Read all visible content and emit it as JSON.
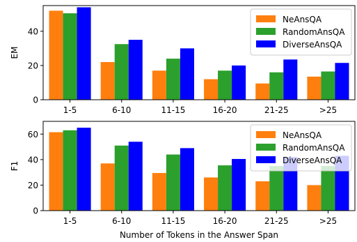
{
  "chart_data": [
    {
      "type": "bar",
      "ylabel": "EM",
      "xlabel": "",
      "ylim": [
        0,
        55
      ],
      "yticks": [
        "0",
        "20",
        "40"
      ],
      "categories": [
        "1-5",
        "6-10",
        "11-15",
        "16-20",
        "21-25",
        ">25"
      ],
      "legend_position": "top-right",
      "series": [
        {
          "name": "NeAnsQA",
          "color": "#ff7f0e",
          "values": [
            52,
            22,
            17,
            12,
            9.5,
            13.5
          ]
        },
        {
          "name": "RandomAnsQA",
          "color": "#2ca02c",
          "values": [
            50.5,
            32.5,
            24,
            17,
            16,
            16.5
          ]
        },
        {
          "name": "DiverseAnsQA",
          "color": "#0000ff",
          "values": [
            54,
            35,
            30,
            20,
            23.5,
            21.5
          ]
        }
      ]
    },
    {
      "type": "bar",
      "ylabel": "F1",
      "xlabel": "Number of Tokens in the Answer Span",
      "ylim": [
        0,
        70
      ],
      "yticks": [
        "0",
        "20",
        "40",
        "60"
      ],
      "categories": [
        "1-5",
        "6-10",
        "11-15",
        "16-20",
        "21-25",
        ">25"
      ],
      "legend_position": "top-right",
      "series": [
        {
          "name": "NeAnsQA",
          "color": "#ff7f0e",
          "values": [
            61.5,
            37,
            29.5,
            26,
            23,
            20
          ]
        },
        {
          "name": "RandomAnsQA",
          "color": "#2ca02c",
          "values": [
            63,
            51,
            44,
            35.5,
            35,
            35
          ]
        },
        {
          "name": "DiverseAnsQA",
          "color": "#0000ff",
          "values": [
            65,
            54,
            49,
            40.5,
            42,
            43
          ]
        }
      ]
    }
  ]
}
